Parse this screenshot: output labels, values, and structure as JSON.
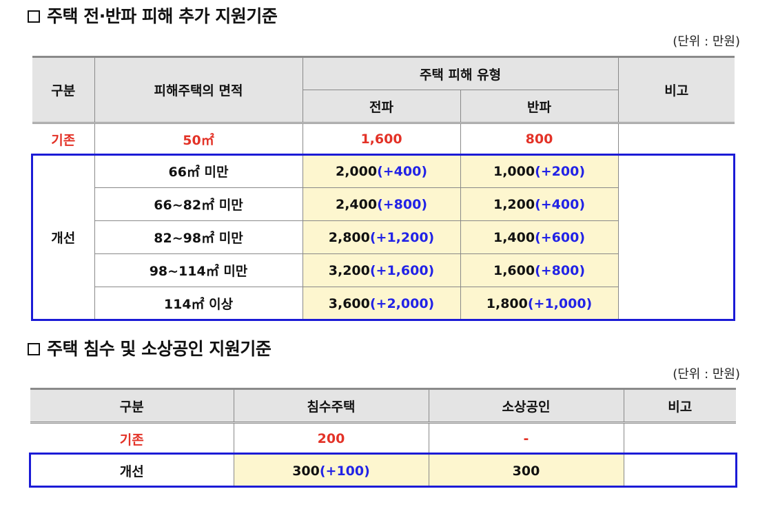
{
  "section1": {
    "title": "주택 전·반파 피해 추가 지원기준",
    "unit": "(단위 : 만원)",
    "headers": {
      "category": "구분",
      "area": "피해주택의 면적",
      "damage_type": "주택 피해 유형",
      "full": "전파",
      "half": "반파",
      "note": "비고"
    },
    "existing": {
      "label": "기존",
      "area": "50㎡",
      "full": "1,600",
      "half": "800",
      "note": ""
    },
    "improved_label": "개선",
    "rows": [
      {
        "area": "66㎡ 미만",
        "full": "2,000",
        "full_inc": "(+400)",
        "half": "1,000",
        "half_inc": "(+200)"
      },
      {
        "area": "66~82㎡ 미만",
        "full": "2,400",
        "full_inc": "(+800)",
        "half": "1,200",
        "half_inc": "(+400)"
      },
      {
        "area": "82~98㎡ 미만",
        "full": "2,800",
        "full_inc": "(+1,200)",
        "half": "1,400",
        "half_inc": "(+600)"
      },
      {
        "area": "98~114㎡ 미만",
        "full": "3,200",
        "full_inc": "(+1,600)",
        "half": "1,600",
        "half_inc": "(+800)"
      },
      {
        "area": "114㎡ 이상",
        "full": "3,600",
        "full_inc": "(+2,000)",
        "half": "1,800",
        "half_inc": "(+1,000)"
      }
    ]
  },
  "section2": {
    "title": "주택 침수 및 소상공인 지원기준",
    "unit": "(단위 : 만원)",
    "headers": {
      "category": "구분",
      "flood": "침수주택",
      "business": "소상공인",
      "note": "비고"
    },
    "existing": {
      "label": "기존",
      "flood": "200",
      "business": "-",
      "note": ""
    },
    "improved": {
      "label": "개선",
      "flood": "300",
      "flood_inc": "(+100)",
      "business": "300",
      "note": ""
    }
  },
  "colors": {
    "highlight": "#fdf6cf",
    "increase": "#2223e6",
    "existing": "#e33227",
    "outline": "#1b1bd6",
    "header_bg": "#e4e4e4"
  }
}
